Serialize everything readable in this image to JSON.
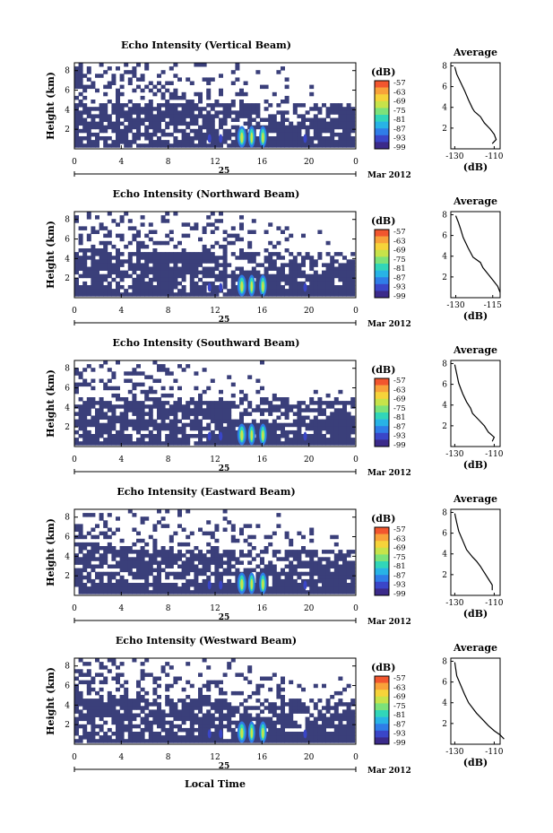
{
  "xlabel": "Local Time",
  "colors": {
    "background_echo": "#3a3f7a",
    "colormap": [
      "#3b2a8a",
      "#3a46c8",
      "#2f7de8",
      "#28b3e6",
      "#31d6b9",
      "#7ce27a",
      "#c7e34a",
      "#f6d33a",
      "#f8a23a",
      "#f2562e"
    ]
  },
  "chart_data": [
    {
      "type": "heatmap",
      "title": "Echo Intensity (Vertical Beam)",
      "ylabel": "Height (km)",
      "yticks": [
        "8",
        "6",
        "4",
        "2"
      ],
      "xticks": [
        "0",
        "4",
        "8",
        "12",
        "16",
        "20",
        "0"
      ],
      "xlim": [
        0,
        24
      ],
      "ylim": [
        0,
        8
      ],
      "date_day": "25",
      "date_month": "Mar 2012",
      "colorbar": {
        "unit": "(dB)",
        "levels": [
          "-57",
          "-63",
          "-69",
          "-75",
          "-81",
          "-87",
          "-93",
          "-99"
        ]
      },
      "profile": {
        "title": "Average",
        "xlabel": "(dB)",
        "xticks": [
          "-130",
          "-110"
        ],
        "yticks": [
          "8",
          "6",
          "4",
          "2"
        ],
        "points": [
          [
            -111,
            0.5
          ],
          [
            -109,
            0.9
          ],
          [
            -110,
            1.4
          ],
          [
            -112,
            1.9
          ],
          [
            -115,
            2.5
          ],
          [
            -117,
            3.1
          ],
          [
            -120,
            3.6
          ],
          [
            -121,
            3.9
          ],
          [
            -123,
            4.7
          ],
          [
            -125,
            5.6
          ],
          [
            -127,
            6.4
          ],
          [
            -129,
            7.2
          ],
          [
            -130,
            7.9
          ]
        ]
      }
    },
    {
      "type": "heatmap",
      "title": "Echo Intensity (Northward Beam)",
      "ylabel": "Height (km)",
      "yticks": [
        "8",
        "6",
        "4",
        "2"
      ],
      "xticks": [
        "0",
        "4",
        "8",
        "12",
        "16",
        "20",
        "0"
      ],
      "xlim": [
        0,
        24
      ],
      "ylim": [
        0,
        8
      ],
      "date_day": "25",
      "date_month": "Mar 2012",
      "colorbar": {
        "unit": "(dB)",
        "levels": [
          "-57",
          "-63",
          "-69",
          "-75",
          "-81",
          "-87",
          "-93",
          "-99"
        ]
      },
      "profile": {
        "title": "Average",
        "xlabel": "(dB)",
        "xticks": [
          "-130",
          "-115"
        ],
        "yticks": [
          "8",
          "6",
          "4",
          "2"
        ],
        "points": [
          [
            -112,
            0.5
          ],
          [
            -113,
            1.1
          ],
          [
            -115,
            1.7
          ],
          [
            -117,
            2.3
          ],
          [
            -119,
            2.9
          ],
          [
            -120,
            3.4
          ],
          [
            -123,
            3.9
          ],
          [
            -125,
            4.8
          ],
          [
            -127,
            5.8
          ],
          [
            -128,
            6.6
          ],
          [
            -129,
            7.3
          ],
          [
            -130,
            7.9
          ]
        ]
      }
    },
    {
      "type": "heatmap",
      "title": "Echo Intensity (Southward Beam)",
      "ylabel": "Height (km)",
      "yticks": [
        "8",
        "6",
        "4",
        "2"
      ],
      "xticks": [
        "0",
        "4",
        "8",
        "12",
        "16",
        "20",
        "0"
      ],
      "xlim": [
        0,
        24
      ],
      "ylim": [
        0,
        8
      ],
      "date_day": "25",
      "date_month": "Mar 2012",
      "colorbar": {
        "unit": "(dB)",
        "levels": [
          "-57",
          "-63",
          "-69",
          "-75",
          "-81",
          "-87",
          "-93",
          "-99"
        ]
      },
      "profile": {
        "title": "Average",
        "xlabel": "(dB)",
        "xticks": [
          "-130",
          "-110"
        ],
        "yticks": [
          "8",
          "6",
          "4",
          "2"
        ],
        "points": [
          [
            -111,
            0.5
          ],
          [
            -110,
            0.9
          ],
          [
            -113,
            1.4
          ],
          [
            -115,
            2.0
          ],
          [
            -118,
            2.6
          ],
          [
            -121,
            3.2
          ],
          [
            -122,
            3.7
          ],
          [
            -124,
            4.3
          ],
          [
            -126,
            5.1
          ],
          [
            -128,
            6.1
          ],
          [
            -129,
            7.0
          ],
          [
            -130,
            7.9
          ]
        ]
      }
    },
    {
      "type": "heatmap",
      "title": "Echo Intensity (Eastward Beam)",
      "ylabel": "Height (km)",
      "yticks": [
        "8",
        "6",
        "4",
        "2"
      ],
      "xticks": [
        "0",
        "4",
        "8",
        "12",
        "16",
        "20",
        "0"
      ],
      "xlim": [
        0,
        24
      ],
      "ylim": [
        0,
        8
      ],
      "date_day": "25",
      "date_month": "Mar 2012",
      "colorbar": {
        "unit": "(dB)",
        "levels": [
          "-57",
          "-63",
          "-69",
          "-75",
          "-81",
          "-87",
          "-93",
          "-99"
        ]
      },
      "profile": {
        "title": "Average",
        "xlabel": "(dB)",
        "xticks": [
          "-130",
          "-110"
        ],
        "yticks": [
          "8",
          "6",
          "4",
          "2"
        ],
        "points": [
          [
            -111,
            0.5
          ],
          [
            -111,
            1.0
          ],
          [
            -113,
            1.6
          ],
          [
            -115,
            2.2
          ],
          [
            -117,
            2.8
          ],
          [
            -119,
            3.3
          ],
          [
            -121,
            3.7
          ],
          [
            -124,
            4.4
          ],
          [
            -126,
            5.3
          ],
          [
            -128,
            6.2
          ],
          [
            -129,
            7.0
          ],
          [
            -130,
            7.9
          ]
        ]
      }
    },
    {
      "type": "heatmap",
      "title": "Echo Intensity (Westward Beam)",
      "ylabel": "Height (km)",
      "yticks": [
        "8",
        "6",
        "4",
        "2"
      ],
      "xticks": [
        "0",
        "4",
        "8",
        "12",
        "16",
        "20",
        "0"
      ],
      "xlim": [
        0,
        24
      ],
      "ylim": [
        0,
        8
      ],
      "date_day": "25",
      "date_month": "Mar 2012",
      "colorbar": {
        "unit": "(dB)",
        "levels": [
          "-57",
          "-63",
          "-69",
          "-75",
          "-81",
          "-87",
          "-93",
          "-99"
        ]
      },
      "profile": {
        "title": "Average",
        "xlabel": "(dB)",
        "xticks": [
          "-130",
          "-110"
        ],
        "yticks": [
          "8",
          "6",
          "4",
          "2"
        ],
        "points": [
          [
            -105,
            0.5
          ],
          [
            -107,
            0.9
          ],
          [
            -110,
            1.3
          ],
          [
            -113,
            1.8
          ],
          [
            -116,
            2.4
          ],
          [
            -119,
            3.0
          ],
          [
            -121,
            3.5
          ],
          [
            -123,
            4.0
          ],
          [
            -125,
            4.8
          ],
          [
            -127,
            5.7
          ],
          [
            -129,
            6.6
          ],
          [
            -130,
            7.9
          ]
        ]
      }
    }
  ]
}
